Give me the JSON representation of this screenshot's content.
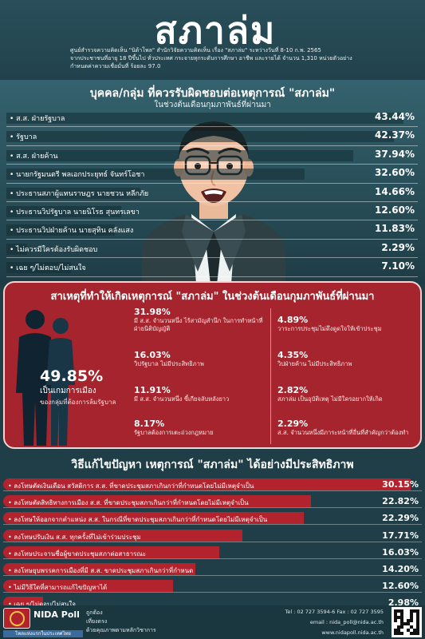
{
  "header": {
    "title": "สภาล่ม",
    "survey_line1": "ศูนย์สำรวจความคิดเห็น \"นิด้าโพล\" สำนักวิจัยความคิดเห็น เรื่อง \"สภาล่ม\" ระหว่างวันที่ 8-10 ก.พ. 2565",
    "survey_line2": "จากประชาชนที่อายุ 18 ปีขึ้นไป ทั่วประเทศ กระจายทุกระดับการศึกษา อาชีพ และรายได้ จำนวน 1,310 หน่วยตัวอย่าง",
    "survey_line3": "กำหนดค่าความเชื่อมั่นที่ ร้อยละ 97.0"
  },
  "blame": {
    "title": "บุคคล/กลุ่ม ที่ควรรับผิดชอบต่อเหตุการณ์ \"สภาล่ม\"",
    "subtitle": "ในช่วงต้นเดือนกุมภาพันธ์ที่ผ่านมา",
    "items": [
      {
        "label": "ส.ส. ฝ่ายรัฐบาล",
        "pct": "43.44%",
        "value": 43.44
      },
      {
        "label": "รัฐบาล",
        "pct": "42.37%",
        "value": 42.37
      },
      {
        "label": "ส.ส. ฝ่ายค้าน",
        "pct": "37.94%",
        "value": 37.94
      },
      {
        "label": "นายกรัฐมนตรี พลเอกประยุทธ์ จันทร์โอชา",
        "pct": "32.60%",
        "value": 32.6
      },
      {
        "label": "ประธานสภาผู้แทนราษฎร นายชวน หลีกภัย",
        "pct": "14.66%",
        "value": 14.66
      },
      {
        "label": "ประธานวิปรัฐบาล นายนิโรธ สุนทรเลขา",
        "pct": "12.60%",
        "value": 12.6
      },
      {
        "label": "ประธานวิปฝ่ายค้าน นายสุทิน คลังแสง",
        "pct": "11.83%",
        "value": 11.83
      },
      {
        "label": "ไม่ควรมีใครต้องรับผิดชอบ",
        "pct": "2.29%",
        "value": 2.29
      },
      {
        "label": "เฉย ๆ/ไม่ตอบ/ไม่สนใจ",
        "pct": "7.10%",
        "value": 7.1
      }
    ]
  },
  "causes": {
    "title": "สาเหตุที่ทำให้เกิดเหตุการณ์ \"สภาล่ม\" ในช่วงต้นเดือนกุมภาพันธ์ที่ผ่านมา",
    "main": {
      "pct": "49.85%",
      "line1": "เป็นเกมการเมือง",
      "line2": "ของกลุ่มที่ต้องการล้มรัฐบาล"
    },
    "left": [
      {
        "pct": "31.98%",
        "text": "มี ส.ส. จำนวนหนึ่ง ไร้สามัญสำนึก ในการทำหน้าที่ฝ่ายนิติบัญญัติ"
      },
      {
        "pct": "16.03%",
        "text": "วิปรัฐบาล ไม่มีประสิทธิภาพ"
      },
      {
        "pct": "11.91%",
        "text": "มี ส.ส. จำนวนหนึ่ง ขี้เกียจลับหลังยาว"
      },
      {
        "pct": "8.17%",
        "text": "รัฐบาลต้องการเตะถ่วงกฎหมาย"
      }
    ],
    "right": [
      {
        "pct": "4.89%",
        "text": "วาระการประชุมไม่ดึงดูดใจให้เข้าประชุม"
      },
      {
        "pct": "4.35%",
        "text": "วิปฝ่ายค้าน ไม่มีประสิทธิภาพ"
      },
      {
        "pct": "2.82%",
        "text": "สภาล่ม เป็นอุบัติเหตุ ไม่มีใครอยากให้เกิด"
      },
      {
        "pct": "2.29%",
        "text": "ส.ส. จำนวนหนึ่งมีภาระหน้าที่อื่นที่สำคัญกว่าต้องทำ"
      }
    ]
  },
  "solutions": {
    "title": "วิธีแก้ไขปัญหา เหตุการณ์ \"สภาล่ม\" ได้อย่างมีประสิทธิภาพ",
    "items": [
      {
        "label": "ลงโทษตัดเงินเดือน สวัสดิการ ส.ส. ที่ขาดประชุมสภาเกินกว่าที่กำหนดโดยไม่มีเหตุจำเป็น",
        "pct": "30.15%",
        "value": 30.15
      },
      {
        "label": "ลงโทษตัดสิทธิทางการเมือง ส.ส. ที่ขาดประชุมสภาเกินกว่าที่กำหนดโดยไม่มีเหตุจำเป็น",
        "pct": "22.82%",
        "value": 22.82
      },
      {
        "label": "ลงโทษให้ออกจากตำแหน่ง ส.ส. ในกรณีที่ขาดประชุมสภาเกินกว่าที่กำหนดโดยไม่มีเหตุจำเป็น",
        "pct": "22.29%",
        "value": 22.29
      },
      {
        "label": "ลงโทษปรับเงิน ส.ส. ทุกครั้งที่ไม่เข้าร่วมประชุม",
        "pct": "17.71%",
        "value": 17.71
      },
      {
        "label": "ลงโทษประจานชื่อผู้ขาดประชุมสภาต่อสาธารณะ",
        "pct": "16.03%",
        "value": 16.03
      },
      {
        "label": "ลงโทษยุบพรรคการเมืองที่มี ส.ส. ขาดประชุมสภาเกินกว่าที่กำหนด",
        "pct": "14.20%",
        "value": 14.2
      },
      {
        "label": "ไม่มีวิธีใดที่สามารถแก้ไขปัญหาได้",
        "pct": "12.60%",
        "value": 12.6
      },
      {
        "label": "เฉย ๆ/ไม่ตอบ/ไม่สนใจ",
        "pct": "2.98%",
        "value": 2.98
      }
    ]
  },
  "footer": {
    "logo_name": "NIDA Poll",
    "logo_tagline": "โพลแห่งแรกในประเทศไทย",
    "legend1": "ถูกต้อง",
    "legend2": "เที่ยงตรง",
    "legend3": "ด้วยคุณภาพตามหลักวิชาการ",
    "contact_phone": "Tel : 02 727 3594-6 Fax : 02 727 3595",
    "contact_email": "email : nida_poll@nida.ac.th",
    "contact_web": "www.nidapoll.nida.ac.th"
  },
  "colors": {
    "background": "#1f3e47",
    "accent_red": "#a5242d",
    "bar_red": "#b3232d"
  }
}
